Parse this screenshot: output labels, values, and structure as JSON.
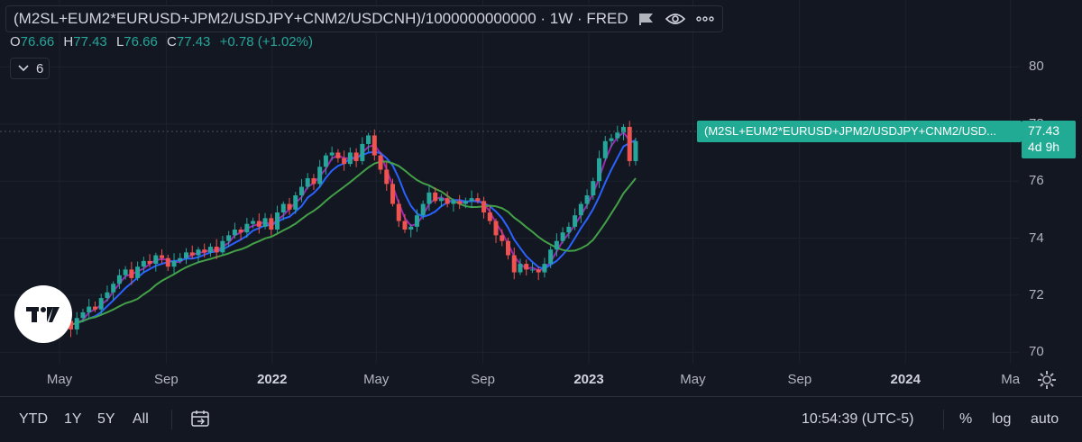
{
  "header": {
    "title": "(M2SL+EUM2*EURUSD+JPM2/USDJPY+CNM2/USDCNH)/1000000000000 · 1W · FRED",
    "icons": [
      "flag-icon",
      "eye-icon",
      "more-icon"
    ]
  },
  "ohlc": {
    "o_label": "O",
    "o_value": "76.66",
    "h_label": "H",
    "h_value": "77.43",
    "l_label": "L",
    "l_value": "76.66",
    "c_label": "C",
    "c_value": "77.43",
    "change": "+0.78 (+1.02%)"
  },
  "indicators_button": {
    "count": "6"
  },
  "price_labels": {
    "series_tag": "(M2SL+EUM2*EURUSD+JPM2/USDJPY+CNM2/USD...",
    "last_price": "77.43",
    "countdown": "4d 9h"
  },
  "bottom_bar": {
    "ranges": [
      "YTD",
      "1Y",
      "5Y",
      "All"
    ],
    "time": "10:54:39 (UTC-5)",
    "percent": "%",
    "log": "log",
    "auto": "auto"
  },
  "colors": {
    "background": "#131722",
    "up": "#26a69a",
    "down": "#ef5350",
    "ma_fast": "#9c27b0",
    "ma_mid": "#2962ff",
    "ma_slow": "#43a047",
    "accent": "#22ab94"
  },
  "chart_data": {
    "type": "candlestick",
    "title": "(M2SL+EUM2*EURUSD+JPM2/USDJPY+CNM2/USDCNH)/1000000000000",
    "interval": "1W",
    "source": "FRED",
    "ylim": [
      69.6,
      81.4
    ],
    "y_ticks": [
      80,
      78,
      76,
      74,
      72,
      70
    ],
    "x_ticks": [
      {
        "label": "May",
        "date": "2021-05-01"
      },
      {
        "label": "Sep",
        "date": "2021-09-01"
      },
      {
        "label": "2022",
        "date": "2022-01-01",
        "bold": true
      },
      {
        "label": "May",
        "date": "2022-05-01"
      },
      {
        "label": "Sep",
        "date": "2022-09-01"
      },
      {
        "label": "2023",
        "date": "2023-01-01",
        "bold": true
      },
      {
        "label": "May",
        "date": "2023-05-01"
      },
      {
        "label": "Sep",
        "date": "2023-09-01"
      },
      {
        "label": "2024",
        "date": "2024-01-01",
        "bold": true
      },
      {
        "label": "Ma",
        "date": "2024-05-01"
      }
    ],
    "closes": [
      71.0,
      71.1,
      70.8,
      71.2,
      71.4,
      71.6,
      71.5,
      71.9,
      72.1,
      72.4,
      72.7,
      72.9,
      72.6,
      73.0,
      73.2,
      73.1,
      73.4,
      73.3,
      73.0,
      73.2,
      73.3,
      73.5,
      73.4,
      73.6,
      73.5,
      73.7,
      73.5,
      73.9,
      74.1,
      74.3,
      74.2,
      74.5,
      74.6,
      74.4,
      74.7,
      74.3,
      74.9,
      75.2,
      75.0,
      75.5,
      75.8,
      76.1,
      75.9,
      76.5,
      76.9,
      77.0,
      76.8,
      76.6,
      77.0,
      76.7,
      77.3,
      77.6,
      76.9,
      76.4,
      75.9,
      75.2,
      74.6,
      74.3,
      74.4,
      74.8,
      75.2,
      75.6,
      75.3,
      75.4,
      75.2,
      75.3,
      75.2,
      75.3,
      75.4,
      75.3,
      74.9,
      74.6,
      74.1,
      73.9,
      73.4,
      72.8,
      73.1,
      72.9,
      72.9,
      72.8,
      73.1,
      73.6,
      73.9,
      74.2,
      74.4,
      74.8,
      75.2,
      75.5,
      76.0,
      76.8,
      77.4,
      77.5,
      77.7,
      77.9,
      76.7,
      77.4
    ]
  }
}
